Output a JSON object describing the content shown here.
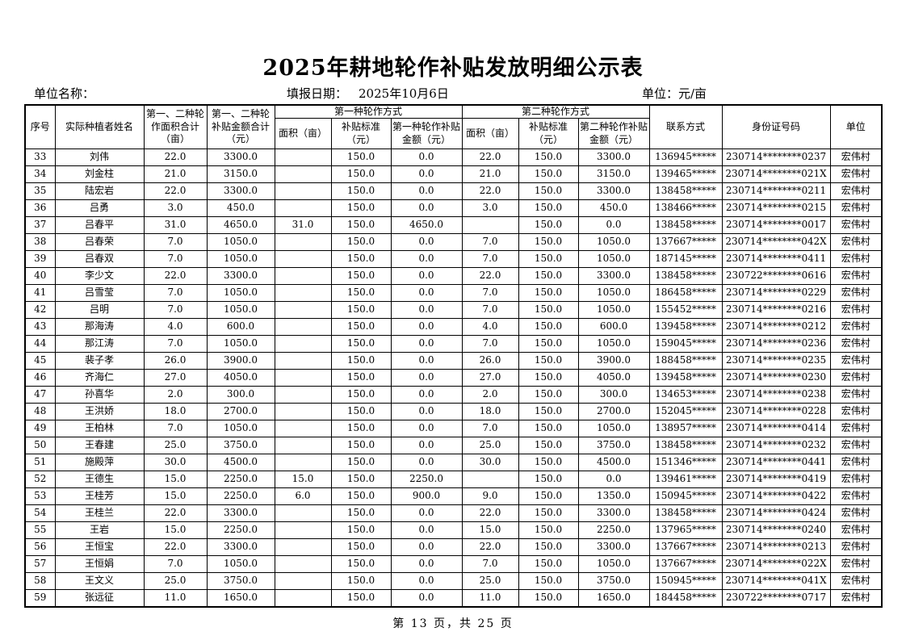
{
  "page": {
    "title": "2025年耕地轮作补贴发放明细公示表",
    "unit_name_label": "单位名称：",
    "report_date_label": "填报日期：",
    "report_date_value": "2025年10月6日",
    "unit_label": "单位：元/亩",
    "footer": "第 13 页，共 25 页"
  },
  "table": {
    "headers": {
      "seq": "序号",
      "name": "实际种植者姓名",
      "total_area": "第一、二种轮作面积合计（亩）",
      "total_amount": "第一、二种轮补贴金额合计（元）",
      "rotation1_group": "第一种轮作方式",
      "rotation2_group": "第二种轮作方式",
      "area1": "面积（亩）",
      "standard1": "补贴标准（元）",
      "amount1": "第一种轮作补贴金额（元）",
      "area2": "面积（亩）",
      "standard2": "补贴标准（元）",
      "amount2": "第二种轮作补贴金额（元）",
      "contact": "联系方式",
      "id_number": "身份证号码",
      "unit": "单位"
    },
    "rows": [
      [
        "33",
        "刘伟",
        "22.0",
        "3300.0",
        "",
        "150.0",
        "0.0",
        "22.0",
        "150.0",
        "3300.0",
        "136945*****",
        "230714********0237",
        "宏伟村"
      ],
      [
        "34",
        "刘金柱",
        "21.0",
        "3150.0",
        "",
        "150.0",
        "0.0",
        "21.0",
        "150.0",
        "3150.0",
        "139465*****",
        "230714********021X",
        "宏伟村"
      ],
      [
        "35",
        "陆宏岩",
        "22.0",
        "3300.0",
        "",
        "150.0",
        "0.0",
        "22.0",
        "150.0",
        "3300.0",
        "138458*****",
        "230714********0211",
        "宏伟村"
      ],
      [
        "36",
        "吕勇",
        "3.0",
        "450.0",
        "",
        "150.0",
        "0.0",
        "3.0",
        "150.0",
        "450.0",
        "138466*****",
        "230714********0215",
        "宏伟村"
      ],
      [
        "37",
        "吕春平",
        "31.0",
        "4650.0",
        "31.0",
        "150.0",
        "4650.0",
        "",
        "150.0",
        "0.0",
        "138458*****",
        "230714********0017",
        "宏伟村"
      ],
      [
        "38",
        "吕春荣",
        "7.0",
        "1050.0",
        "",
        "150.0",
        "0.0",
        "7.0",
        "150.0",
        "1050.0",
        "137667*****",
        "230714********042X",
        "宏伟村"
      ],
      [
        "39",
        "吕春双",
        "7.0",
        "1050.0",
        "",
        "150.0",
        "0.0",
        "7.0",
        "150.0",
        "1050.0",
        "187145*****",
        "230714********0411",
        "宏伟村"
      ],
      [
        "40",
        "李少文",
        "22.0",
        "3300.0",
        "",
        "150.0",
        "0.0",
        "22.0",
        "150.0",
        "3300.0",
        "138458*****",
        "230722********0616",
        "宏伟村"
      ],
      [
        "41",
        "吕雪莹",
        "7.0",
        "1050.0",
        "",
        "150.0",
        "0.0",
        "7.0",
        "150.0",
        "1050.0",
        "186458*****",
        "230714********0229",
        "宏伟村"
      ],
      [
        "42",
        "吕明",
        "7.0",
        "1050.0",
        "",
        "150.0",
        "0.0",
        "7.0",
        "150.0",
        "1050.0",
        "155452*****",
        "230714********0216",
        "宏伟村"
      ],
      [
        "43",
        "那海涛",
        "4.0",
        "600.0",
        "",
        "150.0",
        "0.0",
        "4.0",
        "150.0",
        "600.0",
        "139458*****",
        "230714********0212",
        "宏伟村"
      ],
      [
        "44",
        "那江涛",
        "7.0",
        "1050.0",
        "",
        "150.0",
        "0.0",
        "7.0",
        "150.0",
        "1050.0",
        "159045*****",
        "230714********0236",
        "宏伟村"
      ],
      [
        "45",
        "裴子孝",
        "26.0",
        "3900.0",
        "",
        "150.0",
        "0.0",
        "26.0",
        "150.0",
        "3900.0",
        "188458*****",
        "230714********0235",
        "宏伟村"
      ],
      [
        "46",
        "齐海仁",
        "27.0",
        "4050.0",
        "",
        "150.0",
        "0.0",
        "27.0",
        "150.0",
        "4050.0",
        "139458*****",
        "230714********0230",
        "宏伟村"
      ],
      [
        "47",
        "孙喜华",
        "2.0",
        "300.0",
        "",
        "150.0",
        "0.0",
        "2.0",
        "150.0",
        "300.0",
        "134653*****",
        "230714********0238",
        "宏伟村"
      ],
      [
        "48",
        "王洪娇",
        "18.0",
        "2700.0",
        "",
        "150.0",
        "0.0",
        "18.0",
        "150.0",
        "2700.0",
        "152045*****",
        "230714********0228",
        "宏伟村"
      ],
      [
        "49",
        "王柏林",
        "7.0",
        "1050.0",
        "",
        "150.0",
        "0.0",
        "7.0",
        "150.0",
        "1050.0",
        "138957*****",
        "230714********0414",
        "宏伟村"
      ],
      [
        "50",
        "王春建",
        "25.0",
        "3750.0",
        "",
        "150.0",
        "0.0",
        "25.0",
        "150.0",
        "3750.0",
        "138458*****",
        "230714********0232",
        "宏伟村"
      ],
      [
        "51",
        "施殿萍",
        "30.0",
        "4500.0",
        "",
        "150.0",
        "0.0",
        "30.0",
        "150.0",
        "4500.0",
        "151346*****",
        "230714********0441",
        "宏伟村"
      ],
      [
        "52",
        "王德生",
        "15.0",
        "2250.0",
        "15.0",
        "150.0",
        "2250.0",
        "",
        "150.0",
        "0.0",
        "139461*****",
        "230714********0419",
        "宏伟村"
      ],
      [
        "53",
        "王桂芳",
        "15.0",
        "2250.0",
        "6.0",
        "150.0",
        "900.0",
        "9.0",
        "150.0",
        "1350.0",
        "150945*****",
        "230714********0422",
        "宏伟村"
      ],
      [
        "54",
        "王桂兰",
        "22.0",
        "3300.0",
        "",
        "150.0",
        "0.0",
        "22.0",
        "150.0",
        "3300.0",
        "138458*****",
        "230714********0424",
        "宏伟村"
      ],
      [
        "55",
        "王岩",
        "15.0",
        "2250.0",
        "",
        "150.0",
        "0.0",
        "15.0",
        "150.0",
        "2250.0",
        "137965*****",
        "230714********0240",
        "宏伟村"
      ],
      [
        "56",
        "王恒宝",
        "22.0",
        "3300.0",
        "",
        "150.0",
        "0.0",
        "22.0",
        "150.0",
        "3300.0",
        "137667*****",
        "230714********0213",
        "宏伟村"
      ],
      [
        "57",
        "王恒娟",
        "7.0",
        "1050.0",
        "",
        "150.0",
        "0.0",
        "7.0",
        "150.0",
        "1050.0",
        "137667*****",
        "230714********022X",
        "宏伟村"
      ],
      [
        "58",
        "王文义",
        "25.0",
        "3750.0",
        "",
        "150.0",
        "0.0",
        "25.0",
        "150.0",
        "3750.0",
        "150945*****",
        "230714********041X",
        "宏伟村"
      ],
      [
        "59",
        "张远征",
        "11.0",
        "1650.0",
        "",
        "150.0",
        "0.0",
        "11.0",
        "150.0",
        "1650.0",
        "184458*****",
        "230722********0717",
        "宏伟村"
      ]
    ]
  }
}
